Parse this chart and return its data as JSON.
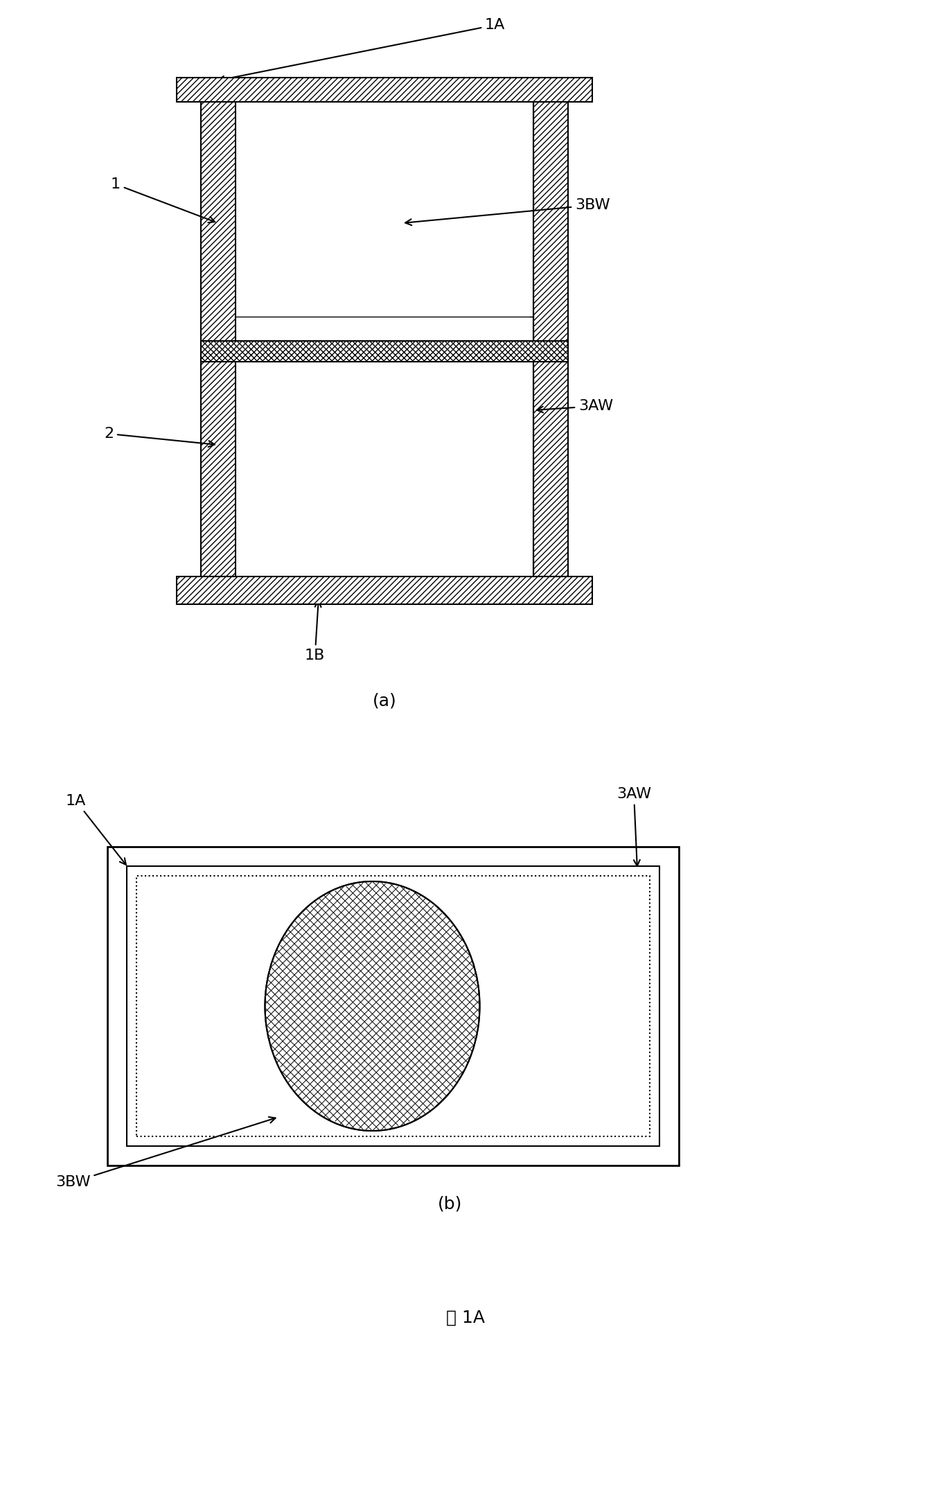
{
  "fig_width": 13.44,
  "fig_height": 21.72,
  "bg_color": "#ffffff",
  "line_color": "#000000",
  "labels": {
    "1A": "1A",
    "1B": "1B",
    "1": "1",
    "2": "2",
    "3AW": "3AW",
    "3BW": "3BW",
    "a": "(a)",
    "b": "(b)",
    "title": "图 1A"
  },
  "font_size": 16,
  "title_font_size": 18
}
